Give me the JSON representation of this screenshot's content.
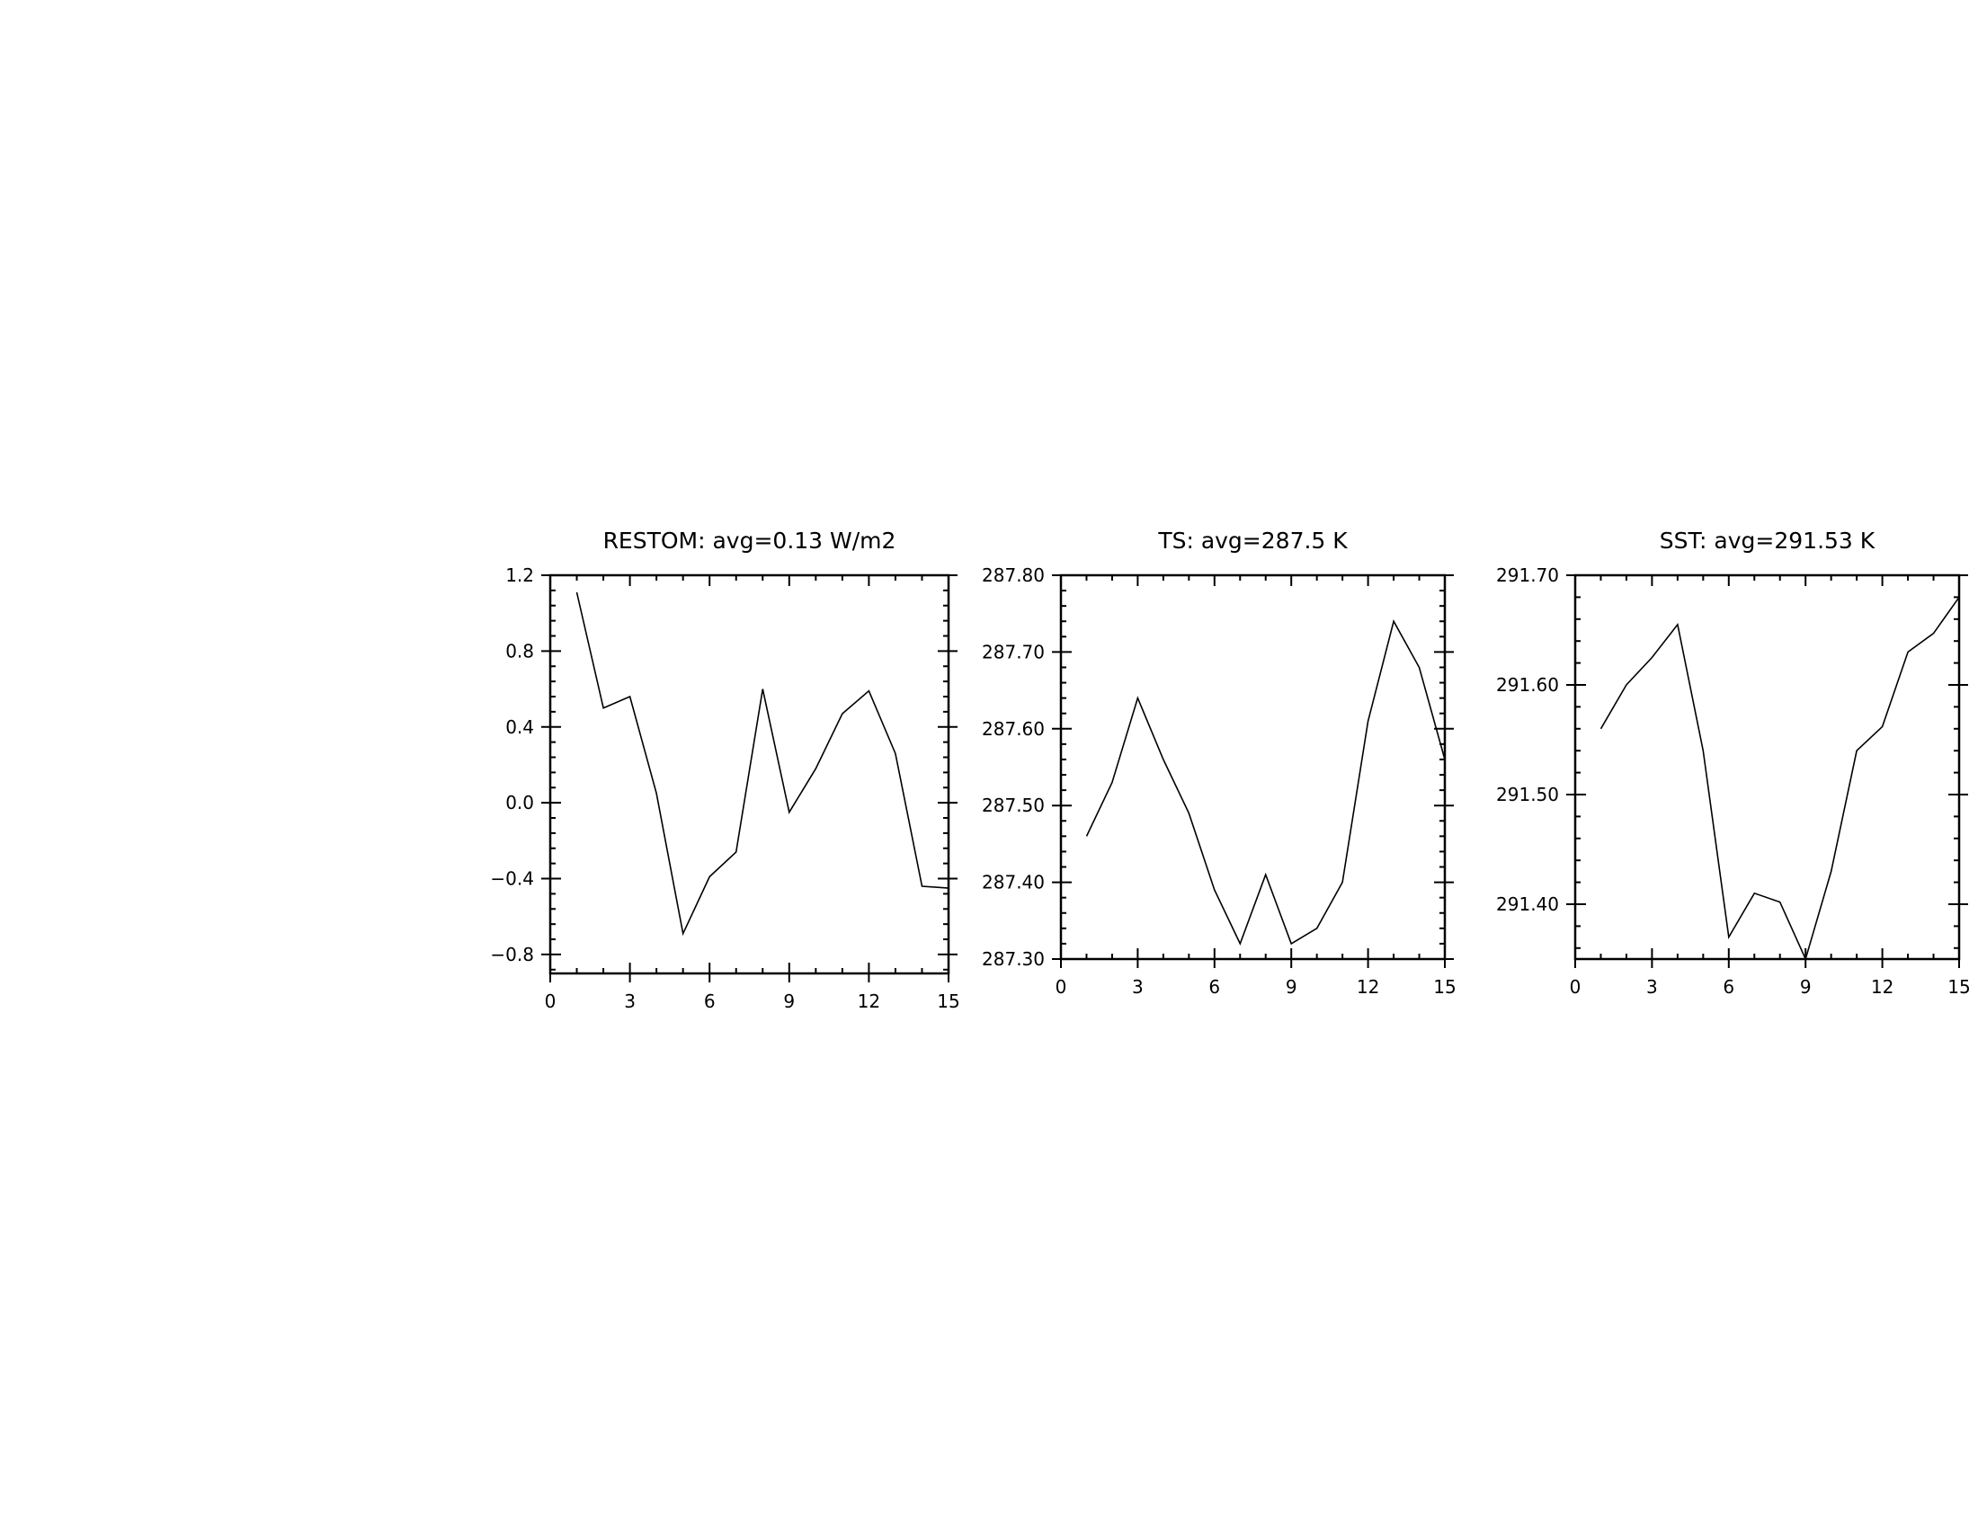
{
  "chart_data": [
    {
      "type": "line",
      "title": "RESTOM: avg=0.13 W/m2",
      "xlim": [
        0,
        15
      ],
      "ylim": [
        -0.9,
        1.2
      ],
      "x_ticks": [
        0,
        3,
        6,
        9,
        12,
        15
      ],
      "x_tick_labels": [
        "0",
        "3",
        "6",
        "9",
        "12",
        "15"
      ],
      "y_ticks": [
        1.2,
        0.8,
        0.4,
        0.0,
        -0.4,
        -0.8
      ],
      "y_tick_labels": [
        "1.2",
        "0.8",
        "0.4",
        "0.0",
        "−0.4",
        "−0.8"
      ],
      "grid": false,
      "series": [
        {
          "x": [
            1,
            2,
            3,
            4,
            5,
            6,
            7,
            8,
            9,
            10,
            11,
            12,
            13,
            14,
            15
          ],
          "values": [
            1.11,
            0.5,
            0.56,
            0.05,
            -0.69,
            -0.39,
            -0.26,
            0.6,
            -0.05,
            0.18,
            0.47,
            0.59,
            0.26,
            -0.44,
            -0.45
          ]
        }
      ]
    },
    {
      "type": "line",
      "title": "TS: avg=287.5 K",
      "xlim": [
        0,
        15
      ],
      "ylim": [
        287.3,
        287.8
      ],
      "x_ticks": [
        0,
        3,
        6,
        9,
        12,
        15
      ],
      "x_tick_labels": [
        "0",
        "3",
        "6",
        "9",
        "12",
        "15"
      ],
      "y_ticks": [
        287.8,
        287.7,
        287.6,
        287.5,
        287.4,
        287.3
      ],
      "y_tick_labels": [
        "287.80",
        "287.70",
        "287.60",
        "287.50",
        "287.40",
        "287.30"
      ],
      "grid": false,
      "series": [
        {
          "x": [
            1,
            2,
            3,
            4,
            5,
            6,
            7,
            8,
            9,
            10,
            11,
            12,
            13,
            14,
            15
          ],
          "values": [
            287.46,
            287.53,
            287.64,
            287.56,
            287.49,
            287.39,
            287.32,
            287.41,
            287.32,
            287.34,
            287.4,
            287.61,
            287.74,
            287.68,
            287.56
          ]
        }
      ]
    },
    {
      "type": "line",
      "title": "SST: avg=291.53 K",
      "xlim": [
        0,
        15
      ],
      "ylim": [
        291.35,
        291.7
      ],
      "x_ticks": [
        0,
        3,
        6,
        9,
        12,
        15
      ],
      "x_tick_labels": [
        "0",
        "3",
        "6",
        "9",
        "12",
        "15"
      ],
      "y_ticks": [
        291.7,
        291.6,
        291.5,
        291.4
      ],
      "y_tick_labels": [
        "291.70",
        "291.60",
        "291.50",
        "291.40"
      ],
      "grid": false,
      "series": [
        {
          "x": [
            1,
            2,
            3,
            4,
            5,
            6,
            7,
            8,
            9,
            10,
            11,
            12,
            13,
            14,
            15
          ],
          "values": [
            291.56,
            291.6,
            291.625,
            291.655,
            291.54,
            291.37,
            291.41,
            291.402,
            291.35,
            291.43,
            291.54,
            291.562,
            291.63,
            291.647,
            291.68
          ]
        }
      ]
    }
  ]
}
